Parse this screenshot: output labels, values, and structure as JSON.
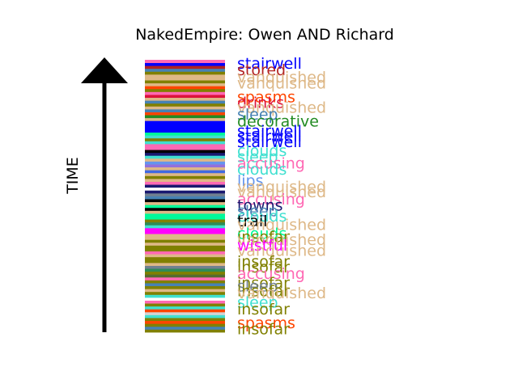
{
  "chart_data": {
    "type": "bar",
    "title": "NakedEmpire: Owen AND Richard",
    "ylabel": "TIME",
    "orientation": "stacked-strip",
    "stripe_colors": [
      "#808000",
      "#4682b4",
      "#808000",
      "#ff4500",
      "#808000",
      "#40e0d0",
      "#d3d3d3",
      "#ff4500",
      "#40e0d0",
      "#808000",
      "#ff69b4",
      "#ffffff",
      "#40e0d0",
      "#808000",
      "#deb887",
      "#808000",
      "#4682b4",
      "#808000",
      "#ff69b4",
      "#556b2f",
      "#808000",
      "#2e8b57",
      "#708090",
      "#deb887",
      "#808000",
      "#808000",
      "#deb887",
      "#ff69b4",
      "#808000",
      "#808000",
      "#deb887",
      "#808000",
      "#deb887",
      "#deb887",
      "#ff00ff",
      "#ff00ff",
      "#40e0d0",
      "#2e8b57",
      "#808000",
      "#00fa9a",
      "#00fa9a",
      "#deb887",
      "#000000",
      "#00fa9a",
      "#deb887",
      "#000000",
      "#4682b4",
      "#708090",
      "#191970",
      "#ffffff",
      "#191970",
      "#ff69b4",
      "#deb887",
      "#808000",
      "#deb887",
      "#4169e1",
      "#deb887",
      "#9370db",
      "#6495ed",
      "#deb887",
      "#40e0d0",
      "#191970",
      "#000000",
      "#ff69b4",
      "#ff69b4",
      "#40e0d0",
      "#808000",
      "#40e0d0",
      "#00fa9a",
      "#0000ff",
      "#0000ff",
      "#0000ff",
      "#0000ff",
      "#deb887",
      "#228b22",
      "#ff4500",
      "#4682b4",
      "#deb887",
      "#808000",
      "#4682b4",
      "#deb887",
      "#dc143c",
      "#ff69b4",
      "#808000",
      "#ff4500",
      "#deb887",
      "#808000",
      "#deb887",
      "#deb887",
      "#808000",
      "#4682b4",
      "#b22222",
      "#0000ff",
      "#ff69b4"
    ],
    "labels": [
      {
        "text": "stairwell",
        "color": "#0000ff",
        "y": 0.985
      },
      {
        "text": "stored",
        "color": "#b22222",
        "y": 0.962
      },
      {
        "text": "vanquished",
        "color": "#deb887",
        "y": 0.935
      },
      {
        "text": "vanquished",
        "color": "#deb887",
        "y": 0.912
      },
      {
        "text": "spasms",
        "color": "#ff4500",
        "y": 0.862
      },
      {
        "text": "drinks",
        "color": "#dc143c",
        "y": 0.841
      },
      {
        "text": "vanquished",
        "color": "#deb887",
        "y": 0.823
      },
      {
        "text": "sleep",
        "color": "#4682b4",
        "y": 0.798
      },
      {
        "text": "decorative",
        "color": "#228b22",
        "y": 0.773
      },
      {
        "text": "stairwell",
        "color": "#0000ff",
        "y": 0.738
      },
      {
        "text": "stairwell",
        "color": "#0000ff",
        "y": 0.718
      },
      {
        "text": "stairwell",
        "color": "#0000ff",
        "y": 0.697
      },
      {
        "text": "clouds",
        "color": "#40e0d0",
        "y": 0.664
      },
      {
        "text": "sleep",
        "color": "#40e0d0",
        "y": 0.643
      },
      {
        "text": "accusing",
        "color": "#ff69b4",
        "y": 0.618
      },
      {
        "text": "clouds",
        "color": "#40e0d0",
        "y": 0.597
      },
      {
        "text": "lips",
        "color": "#6495ed",
        "y": 0.555
      },
      {
        "text": "vanquished",
        "color": "#deb887",
        "y": 0.533
      },
      {
        "text": "vanquished",
        "color": "#deb887",
        "y": 0.513
      },
      {
        "text": "accusing",
        "color": "#ff69b4",
        "y": 0.487
      },
      {
        "text": "towns",
        "color": "#191970",
        "y": 0.465
      },
      {
        "text": "sleep",
        "color": "#4682b4",
        "y": 0.443
      },
      {
        "text": "clouds",
        "color": "#40e0d0",
        "y": 0.425
      },
      {
        "text": "trail",
        "color": "#000000",
        "y": 0.407
      },
      {
        "text": "vanquished",
        "color": "#deb887",
        "y": 0.393
      },
      {
        "text": "clouds",
        "color": "#00fa9a",
        "y": 0.36
      },
      {
        "text": "insofar",
        "color": "#808000",
        "y": 0.348
      },
      {
        "text": "vanquished",
        "color": "#deb887",
        "y": 0.338
      },
      {
        "text": "wistful",
        "color": "#ff00ff",
        "y": 0.318
      },
      {
        "text": "vanquished",
        "color": "#deb887",
        "y": 0.298
      },
      {
        "text": "insofar",
        "color": "#808000",
        "y": 0.258
      },
      {
        "text": "insofar",
        "color": "#808000",
        "y": 0.238
      },
      {
        "text": "accusing",
        "color": "#ff69b4",
        "y": 0.213
      },
      {
        "text": "insofar",
        "color": "#808000",
        "y": 0.18
      },
      {
        "text": "sleep",
        "color": "#708090",
        "y": 0.167
      },
      {
        "text": "insofar",
        "color": "#808000",
        "y": 0.15
      },
      {
        "text": "vanquished",
        "color": "#deb887",
        "y": 0.143
      },
      {
        "text": "sleep",
        "color": "#40e0d0",
        "y": 0.108
      },
      {
        "text": "insofar",
        "color": "#808000",
        "y": 0.083
      },
      {
        "text": "spasms",
        "color": "#ff4500",
        "y": 0.032
      },
      {
        "text": "insofar",
        "color": "#808000",
        "y": 0.01
      }
    ]
  }
}
